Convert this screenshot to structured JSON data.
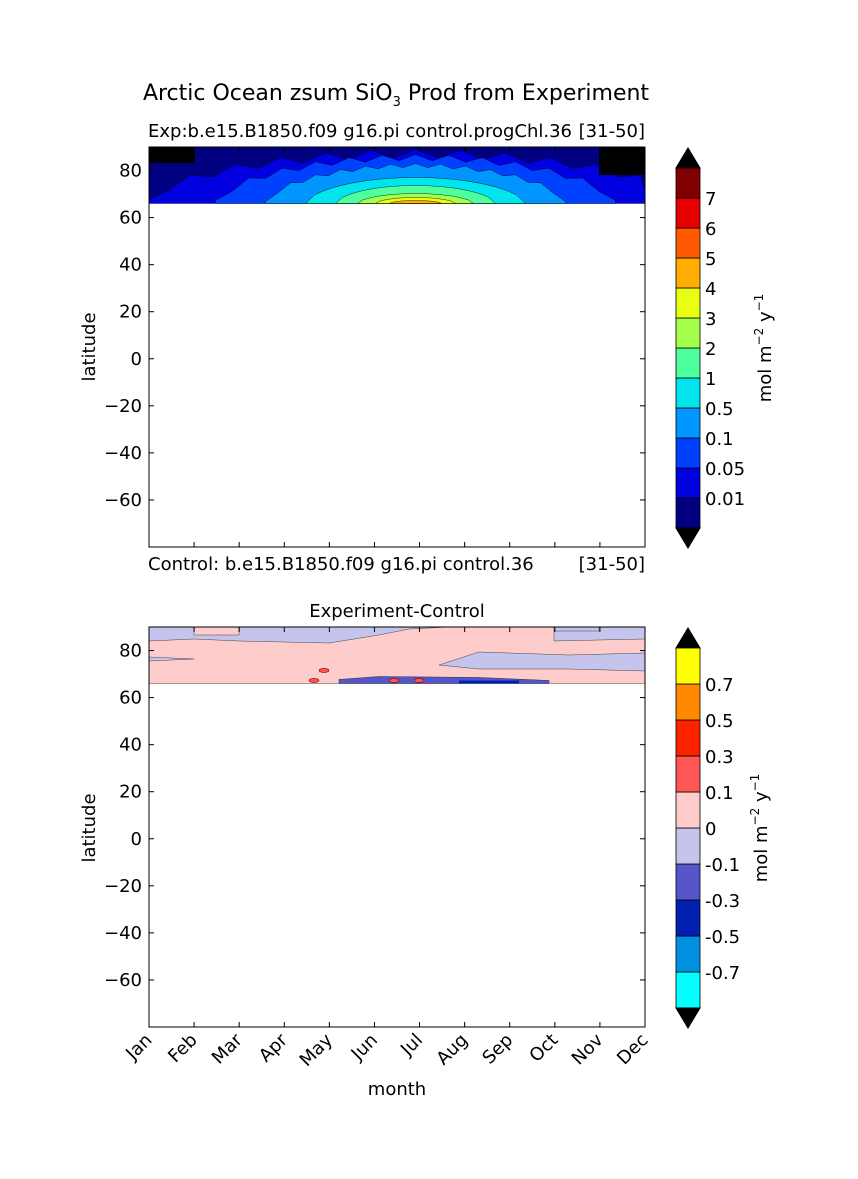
{
  "figure": {
    "title_prefix": "Arctic Ocean zsum SiO",
    "title_sub": "3",
    "title_suffix": " Prod from Experiment"
  },
  "chart_data": [
    {
      "type": "heatmap",
      "title_left": "Exp:b.e15.B1850.f09 g16.pi control.progChl.36",
      "title_right": "[31-50]",
      "bottom_left": "Control: b.e15.B1850.f09 g16.pi control.36",
      "bottom_right": "[31-50]",
      "xlabel": "",
      "ylabel": "latitude",
      "xlim": [
        0,
        11
      ],
      "ylim": [
        -80,
        90
      ],
      "yticks": [
        80,
        60,
        40,
        20,
        0,
        -20,
        -40,
        -60
      ],
      "ytick_labels": [
        "80",
        "60",
        "40",
        "20",
        "0",
        "−20",
        "−40",
        "−60"
      ],
      "data_lat_range": [
        66,
        90
      ],
      "months": [
        "Jan",
        "Feb",
        "Mar",
        "Apr",
        "May",
        "Jun",
        "Jul",
        "Aug",
        "Sep",
        "Oct",
        "Nov",
        "Dec"
      ],
      "peak_month": 6,
      "peak_lat": 66,
      "colorbar": {
        "label": "mol m",
        "label_exp": "−2",
        "label_tail": " y",
        "label_exp2": "−1",
        "levels": [
          "0.01",
          "0.05",
          "0.1",
          "0.5",
          "1",
          "2",
          "3",
          "4",
          "5",
          "6",
          "7"
        ],
        "colors": [
          "#000080",
          "#0000e0",
          "#0040ff",
          "#0095ff",
          "#00e5ee",
          "#4dff9e",
          "#a4ff4d",
          "#e8ff10",
          "#ffad00",
          "#ff5800",
          "#e80000",
          "#800000"
        ],
        "extend_colors": [
          "#000000",
          "#000000"
        ]
      }
    },
    {
      "type": "heatmap",
      "title": "Experiment-Control",
      "xlabel": "month",
      "ylabel": "latitude",
      "xlim": [
        0,
        11
      ],
      "ylim": [
        -80,
        90
      ],
      "yticks": [
        80,
        60,
        40,
        20,
        0,
        -20,
        -40,
        -60
      ],
      "ytick_labels": [
        "80",
        "60",
        "40",
        "20",
        "0",
        "−20",
        "−40",
        "−60"
      ],
      "months": [
        "Jan",
        "Feb",
        "Mar",
        "Apr",
        "May",
        "Jun",
        "Jul",
        "Aug",
        "Sep",
        "Oct",
        "Nov",
        "Dec"
      ],
      "data_lat_range": [
        66,
        90
      ],
      "colorbar": {
        "label": "mol m",
        "label_exp": "−2",
        "label_tail": " y",
        "label_exp2": "−1",
        "levels": [
          "-0.7",
          "-0.5",
          "-0.3",
          "-0.1",
          "0",
          "0.1",
          "0.3",
          "0.5",
          "0.7"
        ],
        "colors": [
          "#00ffff",
          "#0090e0",
          "#0020b0",
          "#5555cc",
          "#c4c4ec",
          "#ffcccc",
          "#ff5555",
          "#ff2200",
          "#ff8800",
          "#ffff00"
        ],
        "extend_colors": [
          "#000000",
          "#000000"
        ]
      }
    }
  ]
}
